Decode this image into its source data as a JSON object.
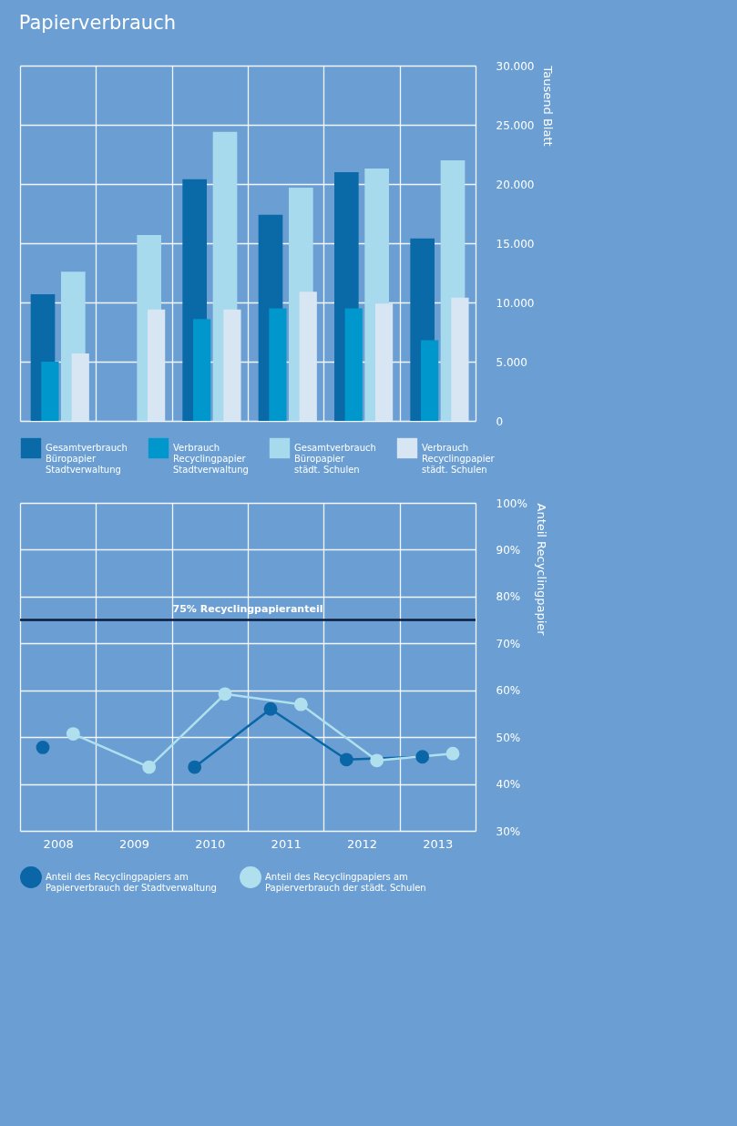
{
  "chart_data": [
    {
      "type": "bar",
      "title": "Papierverbrauch",
      "ylabel": "Tausend Blatt",
      "categories": [
        "2008",
        "2009",
        "2010",
        "2011",
        "2012",
        "2013"
      ],
      "series": [
        {
          "name": "Gesamtverbrauch Büropapier Stadtverwaltung",
          "color": "#0a6aa8",
          "values": [
            10700,
            null,
            20400,
            17400,
            21000,
            15400
          ]
        },
        {
          "name": "Verbrauch Recyclingpapier Stadtverwaltung",
          "color": "#0098cc",
          "values": [
            5000,
            null,
            8600,
            9500,
            9500,
            6800
          ]
        },
        {
          "name": "Gesamtverbrauch Büropapier städt. Schulen",
          "color": "#a8daee",
          "values": [
            12600,
            15700,
            24400,
            19700,
            21300,
            22000
          ]
        },
        {
          "name": "Verbrauch Recyclingpapier städt. Schulen",
          "color": "#d8e6f4",
          "values": [
            5700,
            9400,
            9400,
            10900,
            9900,
            10400
          ]
        }
      ],
      "ylim": [
        0,
        30000
      ],
      "yticks": [
        {
          "value": 0,
          "label": "0"
        },
        {
          "value": 5000,
          "label": "5.000"
        },
        {
          "value": 10000,
          "label": "10.000"
        },
        {
          "value": 15000,
          "label": "15.000"
        },
        {
          "value": 20000,
          "label": "20.000"
        },
        {
          "value": 25000,
          "label": "25.000"
        },
        {
          "value": 30000,
          "label": "30.000"
        }
      ],
      "grid": true,
      "legend": "bottom",
      "tick_labels": "y"
    },
    {
      "type": "line",
      "ylabel": "Anteil Recyclingpapier",
      "categories": [
        "2008",
        "2009",
        "2010",
        "2011",
        "2012",
        "2013"
      ],
      "series": [
        {
          "name": "Anteil des Recyclingpapiers am Papierverbrauch der Stadtverwaltung",
          "color": "#0a66a6",
          "values": [
            47.8,
            null,
            43.6,
            56.0,
            45.2,
            45.8
          ]
        },
        {
          "name": "Anteil des Recyclingpapiers am Papierverbrauch der städt. Schulen",
          "color": "#b0e0ee",
          "values": [
            50.7,
            43.6,
            59.2,
            57.0,
            45.0,
            46.5
          ]
        }
      ],
      "ylim": [
        30,
        100
      ],
      "yticks": [
        {
          "value": 30,
          "label": "30%"
        },
        {
          "value": 40,
          "label": "40%"
        },
        {
          "value": 50,
          "label": "50%"
        },
        {
          "value": 60,
          "label": "60%"
        },
        {
          "value": 70,
          "label": "70%"
        },
        {
          "value": 80,
          "label": "80%"
        },
        {
          "value": 90,
          "label": "90%"
        },
        {
          "value": 100,
          "label": "100%"
        }
      ],
      "ref_lines": [
        {
          "axis": "y",
          "value": 75,
          "label": "75% Recyclingpapieranteil",
          "color": "#0a1a3a"
        }
      ],
      "grid": true,
      "legend": "bottom",
      "marker": "circle",
      "line_style": "solid"
    }
  ]
}
